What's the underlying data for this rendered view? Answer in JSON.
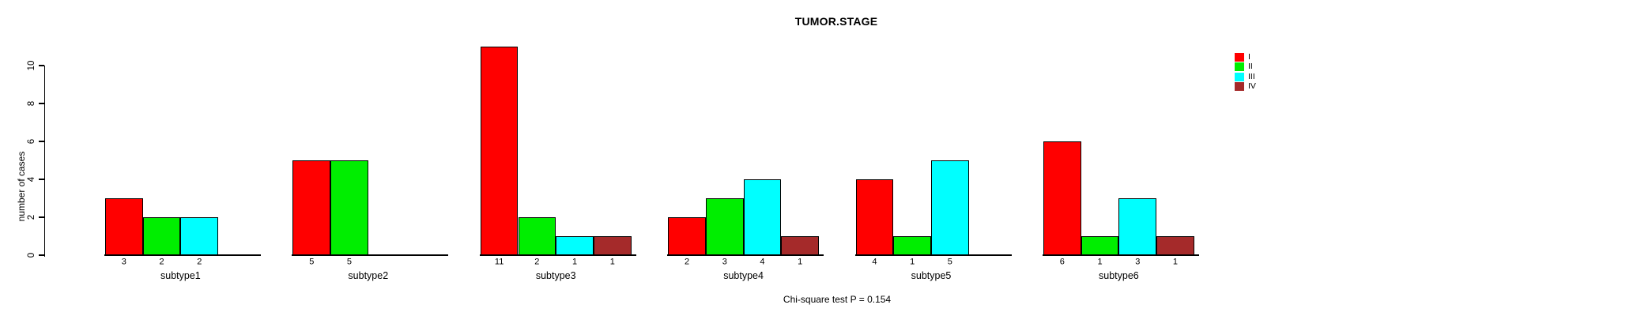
{
  "title": "TUMOR.STAGE",
  "footer": "Chi-square test P = 0.154",
  "y_axis": {
    "label": "number of cases",
    "ticks": [
      0,
      2,
      4,
      6,
      8,
      10
    ]
  },
  "legend": {
    "entries": [
      {
        "label": "I",
        "color": "#ff0000"
      },
      {
        "label": "II",
        "color": "#00ee00"
      },
      {
        "label": "III",
        "color": "#00ffff"
      },
      {
        "label": "IV",
        "color": "#a52a2a"
      }
    ],
    "position": "top-right"
  },
  "chart_data": {
    "type": "bar",
    "title": "TUMOR.STAGE",
    "xlabel": "",
    "ylabel": "number of cases",
    "ylim": [
      0,
      11
    ],
    "yticks": [
      0,
      2,
      4,
      6,
      8,
      10
    ],
    "grid": false,
    "legend_position": "top-right",
    "bar_value_labels_shown": true,
    "categories": [
      "subtype1",
      "subtype2",
      "subtype3",
      "subtype4",
      "subtype5",
      "subtype6"
    ],
    "series": [
      {
        "name": "I",
        "color": "#ff0000",
        "values": [
          3,
          5,
          11,
          2,
          4,
          6
        ]
      },
      {
        "name": "II",
        "color": "#00ee00",
        "values": [
          2,
          5,
          2,
          3,
          1,
          1
        ]
      },
      {
        "name": "III",
        "color": "#00ffff",
        "values": [
          2,
          null,
          1,
          4,
          5,
          3
        ]
      },
      {
        "name": "IV",
        "color": "#a52a2a",
        "values": [
          null,
          null,
          1,
          1,
          null,
          1
        ]
      }
    ],
    "annotation": "Chi-square test P = 0.154"
  }
}
